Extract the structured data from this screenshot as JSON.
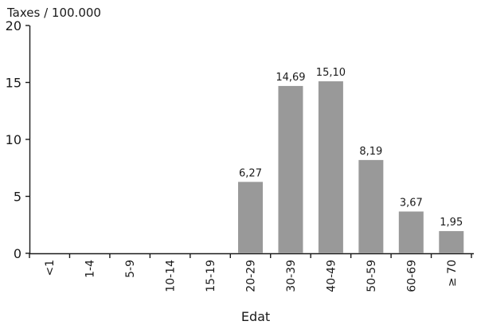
{
  "chart_data": {
    "type": "bar",
    "ylabel": "Taxes / 100.000",
    "xlabel": "Edat",
    "ylim": [
      0,
      20
    ],
    "yticks": [
      "0",
      "5",
      "10",
      "15",
      "20"
    ],
    "categories": [
      "<1",
      "1-4",
      "5-9",
      "10-14",
      "15-19",
      "20-29",
      "30-39",
      "40-49",
      "50-59",
      "60-69",
      "≥ 70"
    ],
    "values": [
      0,
      0,
      0,
      0,
      0,
      6.27,
      14.69,
      15.1,
      8.19,
      3.67,
      1.95
    ],
    "data_labels": [
      "",
      "",
      "",
      "",
      "",
      "6,27",
      "14,69",
      "15,10",
      "8,19",
      "3,67",
      "1,95"
    ],
    "bar_color": "#999999",
    "grid": false,
    "legend": "none"
  }
}
